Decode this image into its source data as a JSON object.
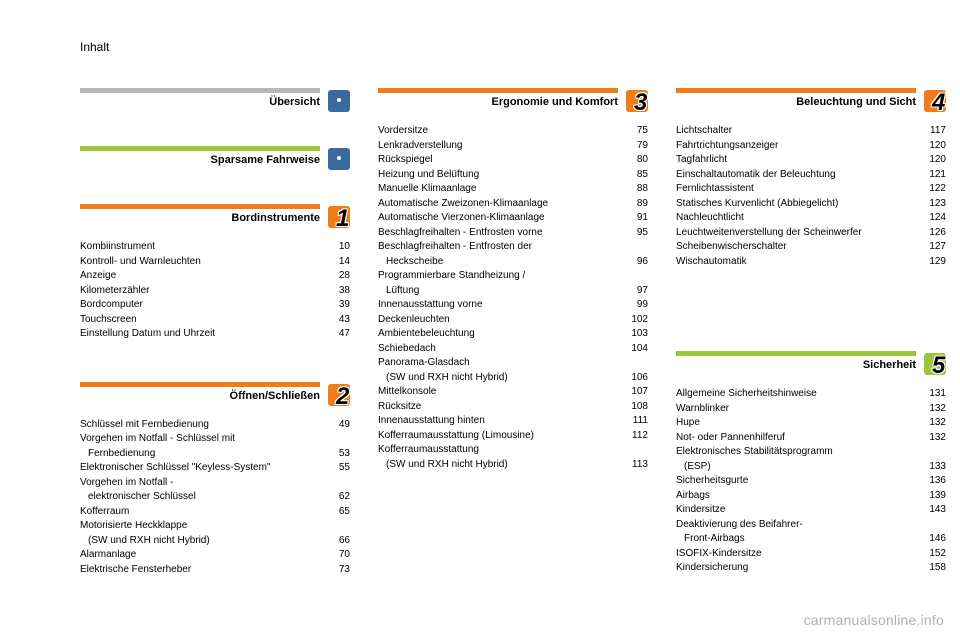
{
  "header": {
    "title": "Inhalt"
  },
  "accent_gray": "#b7b7b7",
  "accent_green": "#9fc63b",
  "accent_orange": "#f07c1a",
  "accent_blue": "#3a6aa0",
  "sections": {
    "ubersicht": {
      "title": "Übersicht",
      "badge": "dot"
    },
    "sparsame": {
      "title": "Sparsame Fahrweise",
      "badge": "dot"
    },
    "bordinstrumente": {
      "title": "Bordinstrumente",
      "badge": "1",
      "items": [
        {
          "label": "Kombiinstrument",
          "page": "10"
        },
        {
          "label": "Kontroll- und Warnleuchten",
          "page": "14"
        },
        {
          "label": "Anzeige",
          "page": "28"
        },
        {
          "label": "Kilometerzähler",
          "page": "38"
        },
        {
          "label": "Bordcomputer",
          "page": "39"
        },
        {
          "label": "Touchscreen",
          "page": "43"
        },
        {
          "label": "Einstellung Datum und Uhrzeit",
          "page": "47"
        }
      ]
    },
    "offnen": {
      "title": "Öffnen/Schließen",
      "badge": "2",
      "items": [
        {
          "label": "Schlüssel mit Fernbedienung",
          "page": "49"
        },
        {
          "label": "Vorgehen im Notfall - Schlüssel mit",
          "page": ""
        },
        {
          "label": "Fernbedienung",
          "page": "53",
          "indent": true
        },
        {
          "label": "Elektronischer Schlüssel \"Keyless-System\"",
          "page": "55"
        },
        {
          "label": "Vorgehen im Notfall -",
          "page": ""
        },
        {
          "label": "elektronischer Schlüssel",
          "page": "62",
          "indent": true
        },
        {
          "label": "Kofferraum",
          "page": "65"
        },
        {
          "label": "Motorisierte Heckklappe",
          "page": ""
        },
        {
          "label": "(SW und RXH nicht Hybrid)",
          "page": "66",
          "indent": true
        },
        {
          "label": "Alarmanlage",
          "page": "70"
        },
        {
          "label": "Elektrische Fensterheber",
          "page": "73"
        }
      ]
    },
    "ergonomie": {
      "title": "Ergonomie und Komfort",
      "badge": "3",
      "items": [
        {
          "label": "Vordersitze",
          "page": "75"
        },
        {
          "label": "Lenkradverstellung",
          "page": "79"
        },
        {
          "label": "Rückspiegel",
          "page": "80"
        },
        {
          "label": "Heizung und Belüftung",
          "page": "85"
        },
        {
          "label": "Manuelle Klimaanlage",
          "page": "88"
        },
        {
          "label": "Automatische Zweizonen-Klimaanlage",
          "page": "89"
        },
        {
          "label": "Automatische Vierzonen-Klimaanlage",
          "page": "91"
        },
        {
          "label": "Beschlagfreihalten - Entfrosten vorne",
          "page": "95"
        },
        {
          "label": "Beschlagfreihalten - Entfrosten der",
          "page": ""
        },
        {
          "label": "Heckscheibe",
          "page": "96",
          "indent": true
        },
        {
          "label": "Programmierbare Standheizung /",
          "page": ""
        },
        {
          "label": "Lüftung",
          "page": "97",
          "indent": true
        },
        {
          "label": "Innenausstattung vorne",
          "page": "99"
        },
        {
          "label": "Deckenleuchten",
          "page": "102"
        },
        {
          "label": "Ambientebeleuchtung",
          "page": "103"
        },
        {
          "label": "Schiebedach",
          "page": "104"
        },
        {
          "label": "Panorama-Glasdach",
          "page": ""
        },
        {
          "label": "(SW und RXH nicht Hybrid)",
          "page": "106",
          "indent": true
        },
        {
          "label": "Mittelkonsole",
          "page": "107"
        },
        {
          "label": "Rücksitze",
          "page": "108"
        },
        {
          "label": "Innenausstattung hinten",
          "page": "111"
        },
        {
          "label": "Kofferraumausstattung (Limousine)",
          "page": "112"
        },
        {
          "label": "Kofferraumausstattung",
          "page": ""
        },
        {
          "label": "(SW und RXH nicht Hybrid)",
          "page": "113",
          "indent": true
        }
      ]
    },
    "beleuchtung": {
      "title": "Beleuchtung und Sicht",
      "badge": "4",
      "items": [
        {
          "label": "Lichtschalter",
          "page": "117"
        },
        {
          "label": "Fahrtrichtungsanzeiger",
          "page": "120"
        },
        {
          "label": "Tagfahrlicht",
          "page": "120"
        },
        {
          "label": "Einschaltautomatik der Beleuchtung",
          "page": "121"
        },
        {
          "label": "Fernlichtassistent",
          "page": "122"
        },
        {
          "label": "Statisches Kurvenlicht (Abbiegelicht)",
          "page": "123"
        },
        {
          "label": "Nachleuchtlicht",
          "page": "124"
        },
        {
          "label": "Leuchtweitenverstellung der Scheinwerfer",
          "page": "126"
        },
        {
          "label": "Scheibenwischerschalter",
          "page": "127"
        },
        {
          "label": "Wischautomatik",
          "page": "129"
        }
      ]
    },
    "sicherheit": {
      "title": "Sicherheit",
      "badge": "5",
      "items": [
        {
          "label": "Allgemeine Sicherheitshinweise",
          "page": "131"
        },
        {
          "label": "Warnblinker",
          "page": "132"
        },
        {
          "label": "Hupe",
          "page": "132"
        },
        {
          "label": "Not- oder Pannenhilferuf",
          "page": "132"
        },
        {
          "label": "Elektronisches Stabilitätsprogramm",
          "page": ""
        },
        {
          "label": "(ESP)",
          "page": "133",
          "indent": true
        },
        {
          "label": "Sicherheitsgurte",
          "page": "136"
        },
        {
          "label": "Airbags",
          "page": "139"
        },
        {
          "label": "Kindersitze",
          "page": "143"
        },
        {
          "label": "Deaktivierung des Beifahrer-",
          "page": ""
        },
        {
          "label": "Front-Airbags",
          "page": "146",
          "indent": true
        },
        {
          "label": "ISOFIX-Kindersitze",
          "page": "152"
        },
        {
          "label": "Kindersicherung",
          "page": "158"
        }
      ]
    }
  },
  "watermark": "carmanualsonline.info"
}
